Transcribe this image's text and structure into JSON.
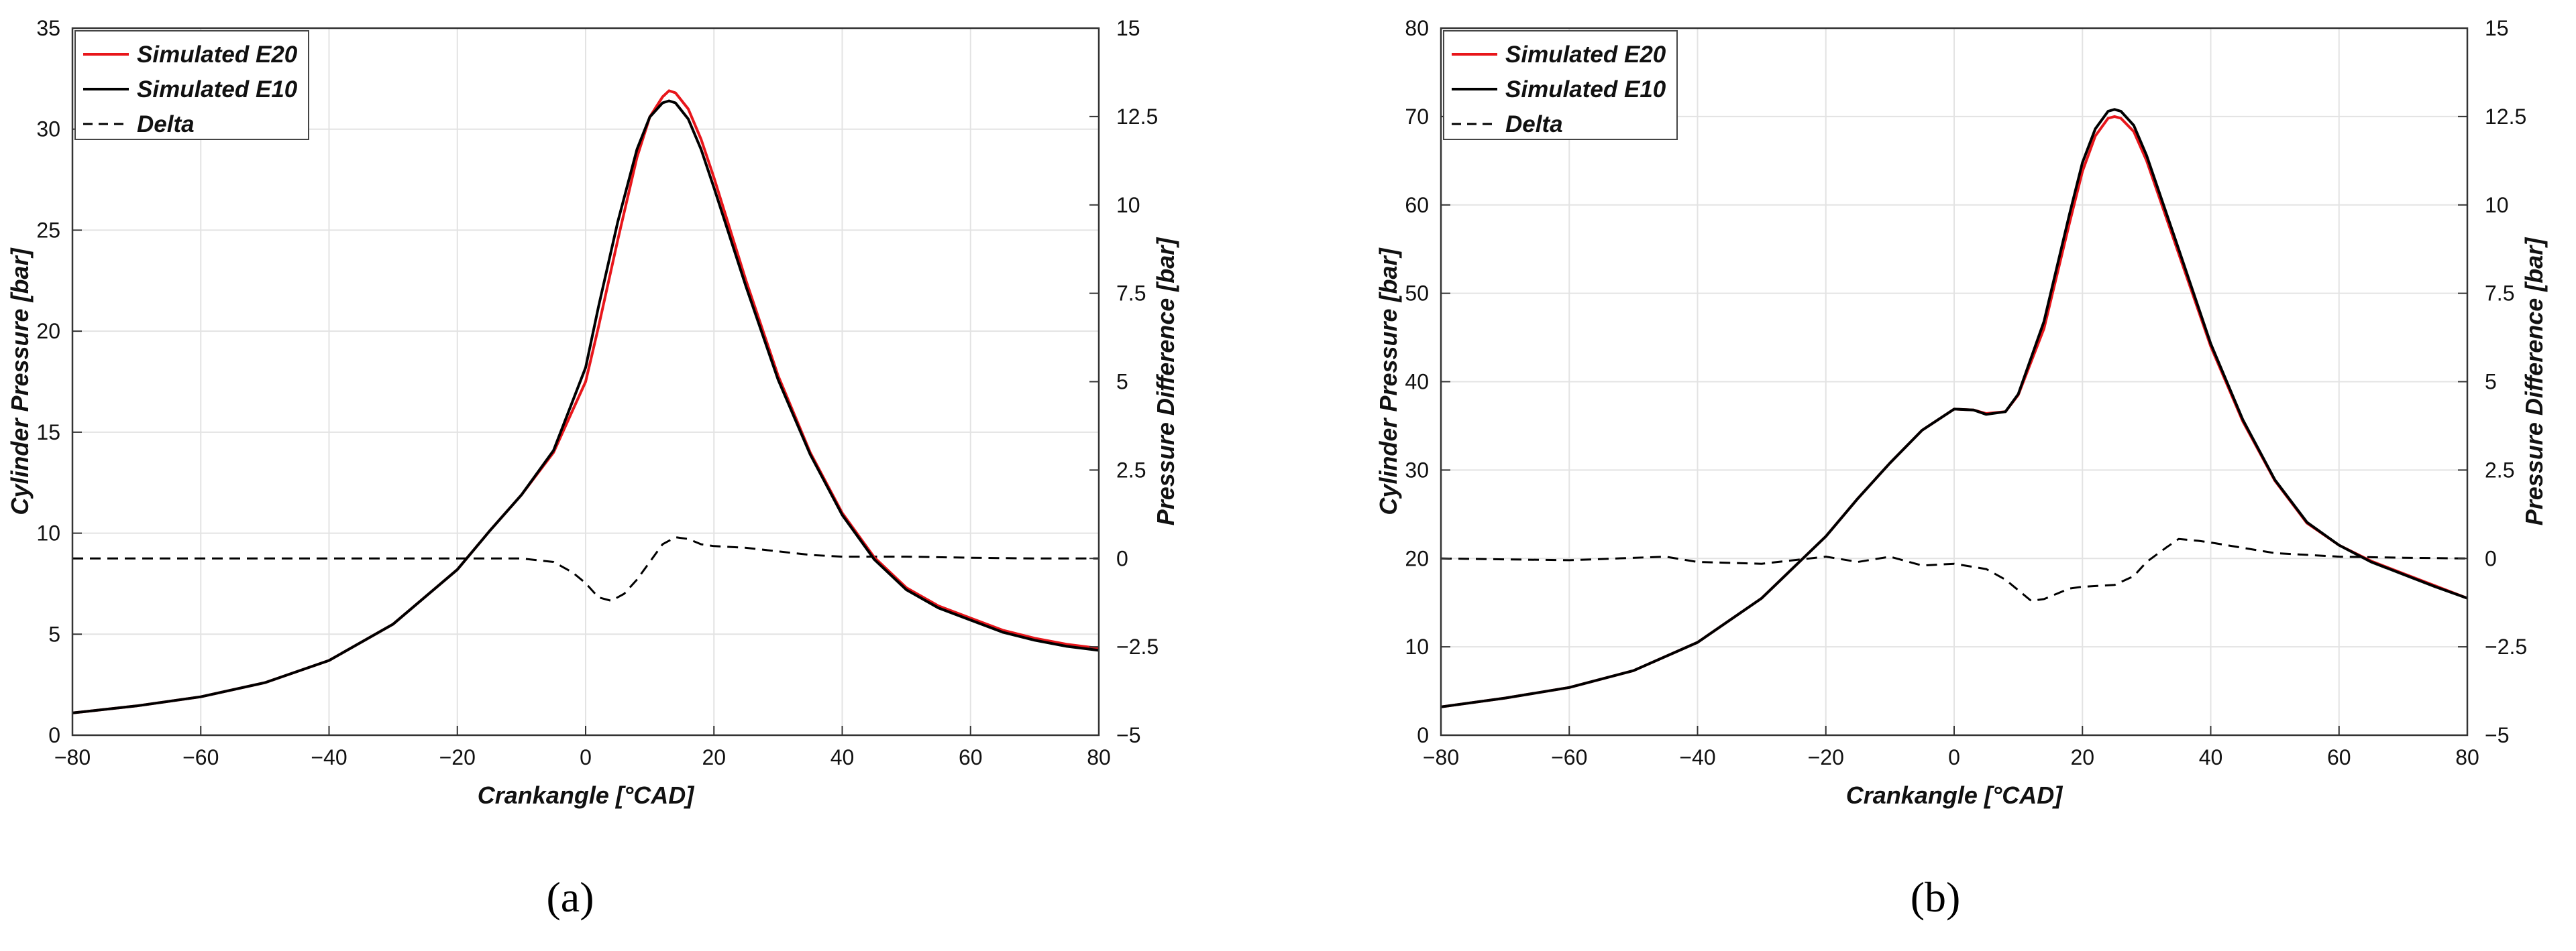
{
  "chart_data": [
    {
      "type": "line",
      "caption": "(a)",
      "xlabel": "Crankangle [°CAD]",
      "ylabel": "Cylinder Pressure [bar]",
      "ylabel_right": "Pressure Difference [bar]",
      "xlim": [
        -80,
        80
      ],
      "xticks": [
        "−80",
        "−60",
        "−40",
        "−20",
        "0",
        "20",
        "40",
        "60",
        "80"
      ],
      "ylim": [
        0,
        35
      ],
      "yticks": [
        "0",
        "5",
        "10",
        "15",
        "20",
        "25",
        "30",
        "35"
      ],
      "ylim_right": [
        -5,
        15
      ],
      "yticks_right": [
        "−5",
        "−2.5",
        "0",
        "2.5",
        "5",
        "7.5",
        "10",
        "12.5",
        "15"
      ],
      "grid": true,
      "legend_position": "top-left",
      "series": [
        {
          "name": "Simulated E20",
          "color": "#e8161b",
          "style": "solid",
          "axis": "left",
          "x": [
            -80,
            -70,
            -60,
            -50,
            -40,
            -30,
            -20,
            -15,
            -10,
            -5,
            0,
            2,
            5,
            8,
            10,
            12,
            13,
            14,
            16,
            18,
            20,
            25,
            30,
            35,
            40,
            45,
            50,
            55,
            60,
            65,
            70,
            75,
            80
          ],
          "y": [
            1.1,
            1.45,
            1.9,
            2.6,
            3.7,
            5.5,
            8.2,
            10.1,
            11.9,
            14.0,
            17.5,
            20.2,
            24.5,
            28.6,
            30.6,
            31.6,
            31.9,
            31.8,
            31.0,
            29.5,
            27.6,
            22.5,
            17.8,
            14.0,
            11.0,
            8.8,
            7.3,
            6.4,
            5.8,
            5.2,
            4.8,
            4.5,
            4.3
          ]
        },
        {
          "name": "Simulated E10",
          "color": "#000000",
          "style": "solid",
          "axis": "left",
          "x": [
            -80,
            -70,
            -60,
            -50,
            -40,
            -30,
            -20,
            -15,
            -10,
            -5,
            0,
            2,
            5,
            8,
            10,
            12,
            13,
            14,
            16,
            18,
            20,
            25,
            30,
            35,
            40,
            45,
            50,
            55,
            60,
            65,
            70,
            75,
            80
          ],
          "y": [
            1.1,
            1.45,
            1.9,
            2.6,
            3.7,
            5.5,
            8.2,
            10.1,
            11.9,
            14.1,
            18.2,
            21.2,
            25.4,
            29.0,
            30.6,
            31.3,
            31.4,
            31.3,
            30.5,
            29.0,
            27.1,
            22.2,
            17.6,
            13.9,
            10.9,
            8.7,
            7.2,
            6.3,
            5.7,
            5.1,
            4.7,
            4.4,
            4.2
          ]
        },
        {
          "name": "Delta",
          "color": "#000000",
          "style": "dashed",
          "axis": "right",
          "x": [
            -80,
            -60,
            -40,
            -20,
            -10,
            -5,
            -2,
            0,
            2,
            4,
            6,
            8,
            10,
            12,
            14,
            16,
            18,
            20,
            25,
            30,
            35,
            40,
            50,
            60,
            70,
            80
          ],
          "y": [
            0,
            0,
            0,
            0,
            0,
            -0.1,
            -0.4,
            -0.7,
            -1.1,
            -1.2,
            -1.0,
            -0.6,
            -0.1,
            0.4,
            0.6,
            0.55,
            0.4,
            0.35,
            0.3,
            0.2,
            0.1,
            0.05,
            0.05,
            0.02,
            0,
            0
          ]
        }
      ]
    },
    {
      "type": "line",
      "caption": "(b)",
      "xlabel": "Crankangle [°CAD]",
      "ylabel": "Cylinder Pressure [bar]",
      "ylabel_right": "Pressure Difference [bar]",
      "xlim": [
        -80,
        80
      ],
      "xticks": [
        "−80",
        "−60",
        "−40",
        "−20",
        "0",
        "20",
        "40",
        "60",
        "80"
      ],
      "ylim": [
        0,
        80
      ],
      "yticks": [
        "0",
        "10",
        "20",
        "30",
        "40",
        "50",
        "60",
        "70",
        "80"
      ],
      "ylim_right": [
        -5,
        15
      ],
      "yticks_right": [
        "−5",
        "−2.5",
        "0",
        "2.5",
        "5",
        "7.5",
        "10",
        "12.5",
        "15"
      ],
      "grid": true,
      "legend_position": "top-left",
      "series": [
        {
          "name": "Simulated E20",
          "color": "#e8161b",
          "style": "solid",
          "axis": "left",
          "x": [
            -80,
            -70,
            -60,
            -50,
            -40,
            -30,
            -20,
            -15,
            -10,
            -5,
            0,
            3,
            5,
            8,
            10,
            14,
            18,
            20,
            22,
            24,
            25,
            26,
            28,
            30,
            35,
            40,
            45,
            50,
            55,
            60,
            65,
            70,
            75,
            80
          ],
          "y": [
            3.2,
            4.2,
            5.4,
            7.3,
            10.5,
            15.5,
            22.5,
            26.8,
            30.8,
            34.5,
            36.9,
            36.8,
            36.4,
            36.6,
            38.5,
            46.0,
            58.0,
            63.8,
            67.8,
            69.8,
            70.0,
            69.8,
            68.3,
            65.0,
            54.5,
            44.0,
            35.5,
            28.8,
            24.0,
            21.5,
            19.7,
            18.3,
            16.9,
            15.5
          ]
        },
        {
          "name": "Simulated E10",
          "color": "#000000",
          "style": "solid",
          "axis": "left",
          "x": [
            -80,
            -70,
            -60,
            -50,
            -40,
            -30,
            -20,
            -15,
            -10,
            -5,
            0,
            3,
            5,
            8,
            10,
            14,
            18,
            20,
            22,
            24,
            25,
            26,
            28,
            30,
            35,
            40,
            45,
            50,
            55,
            60,
            65,
            70,
            75,
            80
          ],
          "y": [
            3.2,
            4.2,
            5.4,
            7.3,
            10.5,
            15.5,
            22.5,
            26.8,
            30.8,
            34.5,
            36.9,
            36.8,
            36.3,
            36.6,
            38.6,
            46.8,
            59.0,
            64.8,
            68.6,
            70.6,
            70.8,
            70.6,
            69.0,
            65.6,
            55.0,
            44.3,
            35.7,
            28.9,
            24.1,
            21.5,
            19.6,
            18.2,
            16.8,
            15.5
          ]
        },
        {
          "name": "Delta",
          "color": "#000000",
          "style": "dashed",
          "axis": "right",
          "x": [
            -80,
            -60,
            -45,
            -40,
            -30,
            -20,
            -15,
            -10,
            -5,
            0,
            5,
            8,
            10,
            12,
            14,
            16,
            18,
            20,
            25,
            28,
            30,
            33,
            35,
            38,
            40,
            45,
            50,
            60,
            70,
            80
          ],
          "y": [
            0,
            -0.05,
            0.05,
            -0.1,
            -0.15,
            0.05,
            -0.1,
            0.05,
            -0.2,
            -0.15,
            -0.3,
            -0.6,
            -0.9,
            -1.2,
            -1.15,
            -1.0,
            -0.85,
            -0.8,
            -0.75,
            -0.5,
            -0.1,
            0.3,
            0.55,
            0.5,
            0.45,
            0.3,
            0.15,
            0.05,
            0.02,
            0
          ]
        }
      ]
    }
  ]
}
